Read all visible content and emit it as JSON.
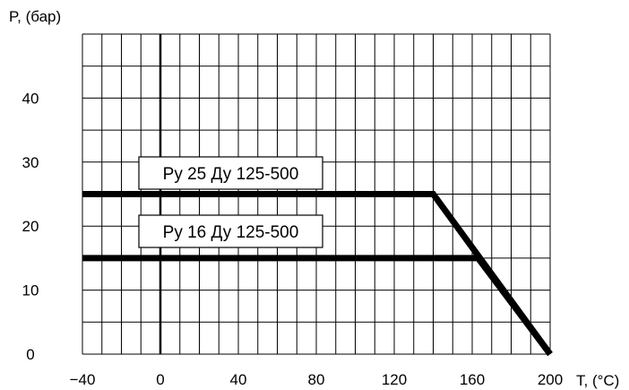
{
  "chart_data": {
    "type": "line",
    "title": "",
    "xlabel": "T, (°C)",
    "ylabel": "P, (бар)",
    "xlim": [
      -40,
      200
    ],
    "ylim": [
      0,
      50
    ],
    "x_ticks": [
      -40,
      0,
      40,
      80,
      120,
      160,
      200
    ],
    "y_ticks": [
      0,
      10,
      20,
      30,
      40
    ],
    "grid": true,
    "series": [
      {
        "name": "Ру 25 Ду 125-500",
        "x": [
          -40,
          140,
          200
        ],
        "y": [
          25,
          25,
          0
        ]
      },
      {
        "name": "Ру 16 Ду 125-500",
        "x": [
          -40,
          163,
          200
        ],
        "y": [
          15,
          15,
          0
        ]
      }
    ]
  }
}
